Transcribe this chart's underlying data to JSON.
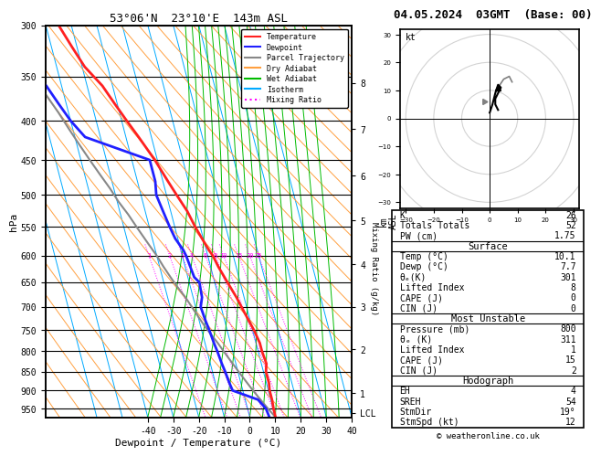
{
  "title_left": "53°06'N  23°10'E  143m ASL",
  "title_right": "04.05.2024  03GMT  (Base: 00)",
  "xlabel": "Dewpoint / Temperature (°C)",
  "ylabel_left": "hPa",
  "pressure_ticks": [
    300,
    350,
    400,
    450,
    500,
    550,
    600,
    650,
    700,
    750,
    800,
    850,
    900,
    950
  ],
  "xlim": [
    -40,
    40
  ],
  "p_min": 300,
  "p_max": 975,
  "isotherm_color": "#00AAFF",
  "dry_adiabat_color": "#FFA040",
  "wet_adiabat_color": "#00BB00",
  "mixing_ratio_color": "#FF00FF",
  "temp_profile_color": "#FF2020",
  "dewpoint_profile_color": "#2020FF",
  "parcel_color": "#888888",
  "legend_items": [
    "Temperature",
    "Dewpoint",
    "Parcel Trajectory",
    "Dry Adiabat",
    "Wet Adiabat",
    "Isotherm",
    "Mixing Ratio"
  ],
  "legend_colors": [
    "#FF2020",
    "#2020FF",
    "#888888",
    "#FFA040",
    "#00BB00",
    "#00AAFF",
    "#FF00FF"
  ],
  "legend_styles": [
    "solid",
    "solid",
    "solid",
    "solid",
    "solid",
    "solid",
    "dotted"
  ],
  "temp_data_p": [
    300,
    320,
    340,
    360,
    380,
    400,
    420,
    450,
    480,
    500,
    525,
    550,
    570,
    590,
    600,
    620,
    650,
    680,
    700,
    730,
    750,
    780,
    800,
    830,
    850,
    880,
    900,
    925,
    950,
    975
  ],
  "temp_data_T": [
    -35,
    -32,
    -29,
    -24,
    -21,
    -18,
    -15,
    -11,
    -8,
    -6,
    -3.5,
    -2,
    -0.5,
    1,
    2,
    3,
    5,
    7,
    8,
    9.5,
    10.5,
    11.5,
    11.5,
    12,
    11,
    11,
    10.5,
    10.5,
    10.2,
    10.1
  ],
  "dewp_data_p": [
    300,
    320,
    340,
    360,
    380,
    400,
    420,
    450,
    480,
    500,
    525,
    550,
    570,
    580,
    590,
    600,
    620,
    640,
    650,
    680,
    700,
    730,
    750,
    780,
    800,
    830,
    850,
    880,
    900,
    925,
    950,
    975
  ],
  "dewp_data_T": [
    -56,
    -53,
    -50,
    -46,
    -43,
    -40,
    -36,
    -13,
    -13,
    -14,
    -13,
    -12,
    -11,
    -10,
    -9,
    -8.5,
    -8,
    -7.5,
    -6,
    -6.5,
    -8,
    -7.5,
    -7,
    -6.5,
    -6,
    -5.5,
    -5,
    -4.5,
    -4,
    5,
    7.2,
    7.7
  ],
  "parcel_data_p": [
    975,
    950,
    925,
    900,
    880,
    860,
    840,
    820,
    800,
    780,
    760,
    740,
    720,
    700,
    680,
    660,
    640,
    620,
    600,
    580,
    560,
    550,
    530,
    510,
    490,
    470,
    450,
    430,
    410,
    390,
    370,
    350,
    330,
    310,
    300
  ],
  "parcel_data_T": [
    10.1,
    8,
    6,
    4,
    2.5,
    1,
    -0.5,
    -2,
    -3.5,
    -5,
    -6.8,
    -8.5,
    -10,
    -11.5,
    -13,
    -15,
    -16.8,
    -18.5,
    -20,
    -22,
    -24,
    -25,
    -27,
    -29.5,
    -31.5,
    -34,
    -36.5,
    -39,
    -41.5,
    -44,
    -47,
    -50,
    -53,
    -56,
    -58
  ],
  "km_ticks": [
    1,
    2,
    3,
    4,
    5,
    6,
    7,
    8
  ],
  "km_pressures": [
    907,
    795,
    700,
    616,
    540,
    472,
    410,
    357
  ],
  "lcl_pressure": 962,
  "mixing_ratio_vals": [
    1,
    2,
    3,
    4,
    6,
    8,
    10,
    15,
    20,
    25
  ],
  "skew": 40,
  "table_k": 26,
  "table_tt": 52,
  "table_pw": "1.75",
  "table_surf_temp": "10.1",
  "table_surf_dewp": "7.7",
  "table_surf_theta_e": "301",
  "table_surf_li": "8",
  "table_surf_cape": "0",
  "table_surf_cin": "0",
  "table_mu_press": "800",
  "table_mu_theta_e": "311",
  "table_mu_li": "1",
  "table_mu_cape": "15",
  "table_mu_cin": "2",
  "table_hodo_eh": "4",
  "table_hodo_sreh": "54",
  "table_hodo_stmdir": "19°",
  "table_hodo_stmspd": "12",
  "background_color": "#FFFFFF"
}
